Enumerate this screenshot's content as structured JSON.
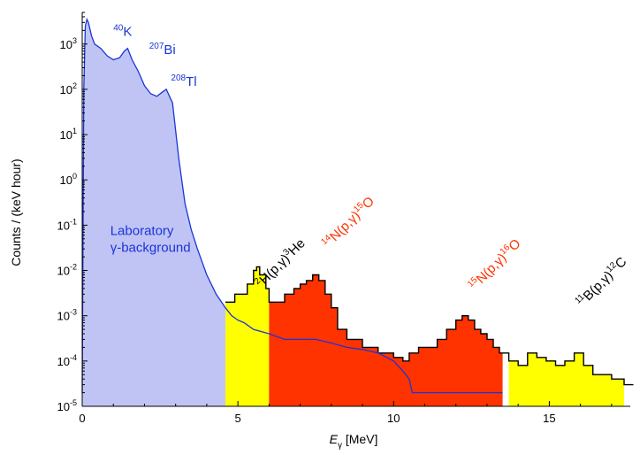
{
  "chart_data": {
    "type": "area",
    "xlabel": {
      "main": "E",
      "sub": "γ",
      "unit": " [MeV]"
    },
    "ylabel": "Counts / (keV hour)",
    "xlim": [
      0,
      17.6
    ],
    "ylim": [
      1e-05,
      5000
    ],
    "yscale": "log",
    "x_ticks": [
      0,
      5,
      10,
      15
    ],
    "x_tick_labels": [
      "0",
      "5",
      "10",
      "15"
    ],
    "y_ticks": [
      {
        "base": "10",
        "exp": "-5",
        "value": 1e-05
      },
      {
        "base": "10",
        "exp": "-4",
        "value": 0.0001
      },
      {
        "base": "10",
        "exp": "-3",
        "value": 0.001
      },
      {
        "base": "10",
        "exp": "-2",
        "value": 0.01
      },
      {
        "base": "10",
        "exp": "-1",
        "value": 0.1
      },
      {
        "base": "10",
        "exp": "0",
        "value": 1
      },
      {
        "base": "10",
        "exp": "1",
        "value": 10
      },
      {
        "base": "10",
        "exp": "2",
        "value": 100
      },
      {
        "base": "10",
        "exp": "3",
        "value": 1000
      }
    ],
    "colors": {
      "background_fill": "#c0c4f5",
      "background_line": "#1a35d6",
      "yellow": "#ffff00",
      "red": "#ff3300",
      "outline": "#000000"
    },
    "background": {
      "label_line1": "Laboratory",
      "label_line2": "γ-background",
      "x": [
        0,
        0.05,
        0.1,
        0.15,
        0.2,
        0.3,
        0.4,
        0.6,
        0.8,
        1.0,
        1.2,
        1.35,
        1.46,
        1.6,
        1.8,
        2.0,
        2.2,
        2.4,
        2.6,
        2.7,
        2.9,
        3.1,
        3.3,
        3.5,
        3.7,
        4.0,
        4.3,
        4.6,
        4.8,
        5.0,
        5.2,
        5.5,
        6.0,
        6.5,
        7.0,
        7.5,
        8.0,
        8.5,
        9.0,
        9.5,
        10.0,
        10.3,
        10.5,
        10.6,
        11.0,
        11.5,
        12.0,
        12.5,
        13.0,
        13.5
      ],
      "y": [
        2e-05,
        100,
        2500,
        3500,
        3000,
        1500,
        1000,
        800,
        550,
        450,
        500,
        700,
        800,
        450,
        250,
        120,
        80,
        70,
        90,
        100,
        50,
        3,
        0.3,
        0.08,
        0.03,
        0.008,
        0.003,
        0.0015,
        0.001,
        0.0008,
        0.0007,
        0.0005,
        0.0004,
        0.0003,
        0.0003,
        0.0003,
        0.00025,
        0.0002,
        0.00018,
        0.00015,
        0.0001,
        6e-05,
        4e-05,
        2e-05,
        2e-05,
        2e-05,
        2e-05,
        2e-05,
        2e-05,
        2e-05
      ]
    },
    "signal": {
      "x": [
        4.6,
        4.9,
        5.1,
        5.3,
        5.5,
        5.6,
        5.7,
        5.9,
        6.0,
        6.2,
        6.5,
        6.8,
        7.0,
        7.2,
        7.4,
        7.6,
        7.8,
        8.0,
        8.2,
        8.5,
        9.0,
        9.5,
        10.0,
        10.3,
        10.5,
        10.8,
        11.1,
        11.4,
        11.7,
        12.0,
        12.2,
        12.4,
        12.6,
        12.8,
        13.0,
        13.2,
        13.4,
        13.7,
        14.0,
        14.3,
        14.6,
        14.9,
        15.2,
        15.5,
        15.8,
        16.1,
        16.4,
        16.7,
        17.0,
        17.4
      ],
      "y": [
        0.002,
        0.003,
        0.003,
        0.005,
        0.01,
        0.012,
        0.008,
        0.004,
        0.002,
        0.002,
        0.003,
        0.004,
        0.005,
        0.006,
        0.008,
        0.006,
        0.003,
        0.0015,
        0.0005,
        0.0003,
        0.0002,
        0.00015,
        0.00012,
        0.0001,
        0.00015,
        0.0002,
        0.0002,
        0.0003,
        0.0005,
        0.0008,
        0.001,
        0.0008,
        0.0005,
        0.0004,
        0.0003,
        0.0002,
        0.00015,
        0.0001,
        8e-05,
        0.00015,
        0.00012,
        0.0001,
        8e-05,
        0.0001,
        0.00015,
        8e-05,
        5e-05,
        5e-05,
        4e-05,
        3e-05
      ]
    },
    "yellow_regions": [
      [
        4.6,
        6.0
      ],
      [
        13.5,
        17.4
      ]
    ],
    "red_regions": [
      [
        6.0,
        13.5
      ]
    ],
    "annotations": [
      {
        "id": "k40",
        "mass": "40",
        "element": "K",
        "color": "#1a35d6",
        "x": 1.0,
        "y": 1500
      },
      {
        "id": "bi207",
        "mass": "207",
        "element": "Bi",
        "color": "#1a35d6",
        "x": 2.15,
        "y": 600
      },
      {
        "id": "tl208",
        "mass": "208",
        "element": "Tl",
        "color": "#1a35d6",
        "x": 2.85,
        "y": 120
      }
    ],
    "reactions": [
      {
        "id": "h2",
        "parts": [
          [
            "2",
            "sup"
          ],
          [
            "H(p,γ)",
            ""
          ],
          [
            "3",
            "sup"
          ],
          [
            "He",
            ""
          ]
        ],
        "color": "#000000",
        "x": 5.75,
        "y": 0.004,
        "rotate": -45
      },
      {
        "id": "n14",
        "parts": [
          [
            "14",
            "sup"
          ],
          [
            "N(p,γ)",
            ""
          ],
          [
            "15",
            "sup"
          ],
          [
            "O",
            ""
          ]
        ],
        "color": "#ff3300",
        "x": 7.9,
        "y": 0.03,
        "rotate": -45
      },
      {
        "id": "n15",
        "parts": [
          [
            "15",
            "sup"
          ],
          [
            "N(p,γ)",
            ""
          ],
          [
            "16",
            "sup"
          ],
          [
            "O",
            ""
          ]
        ],
        "color": "#ff3300",
        "x": 12.6,
        "y": 0.0035,
        "rotate": -45
      },
      {
        "id": "b11",
        "parts": [
          [
            "11",
            "sup"
          ],
          [
            "B(p,γ)",
            ""
          ],
          [
            "12",
            "sup"
          ],
          [
            "C",
            ""
          ]
        ],
        "color": "#000000",
        "x": 16.05,
        "y": 0.0015,
        "rotate": -45
      }
    ]
  }
}
